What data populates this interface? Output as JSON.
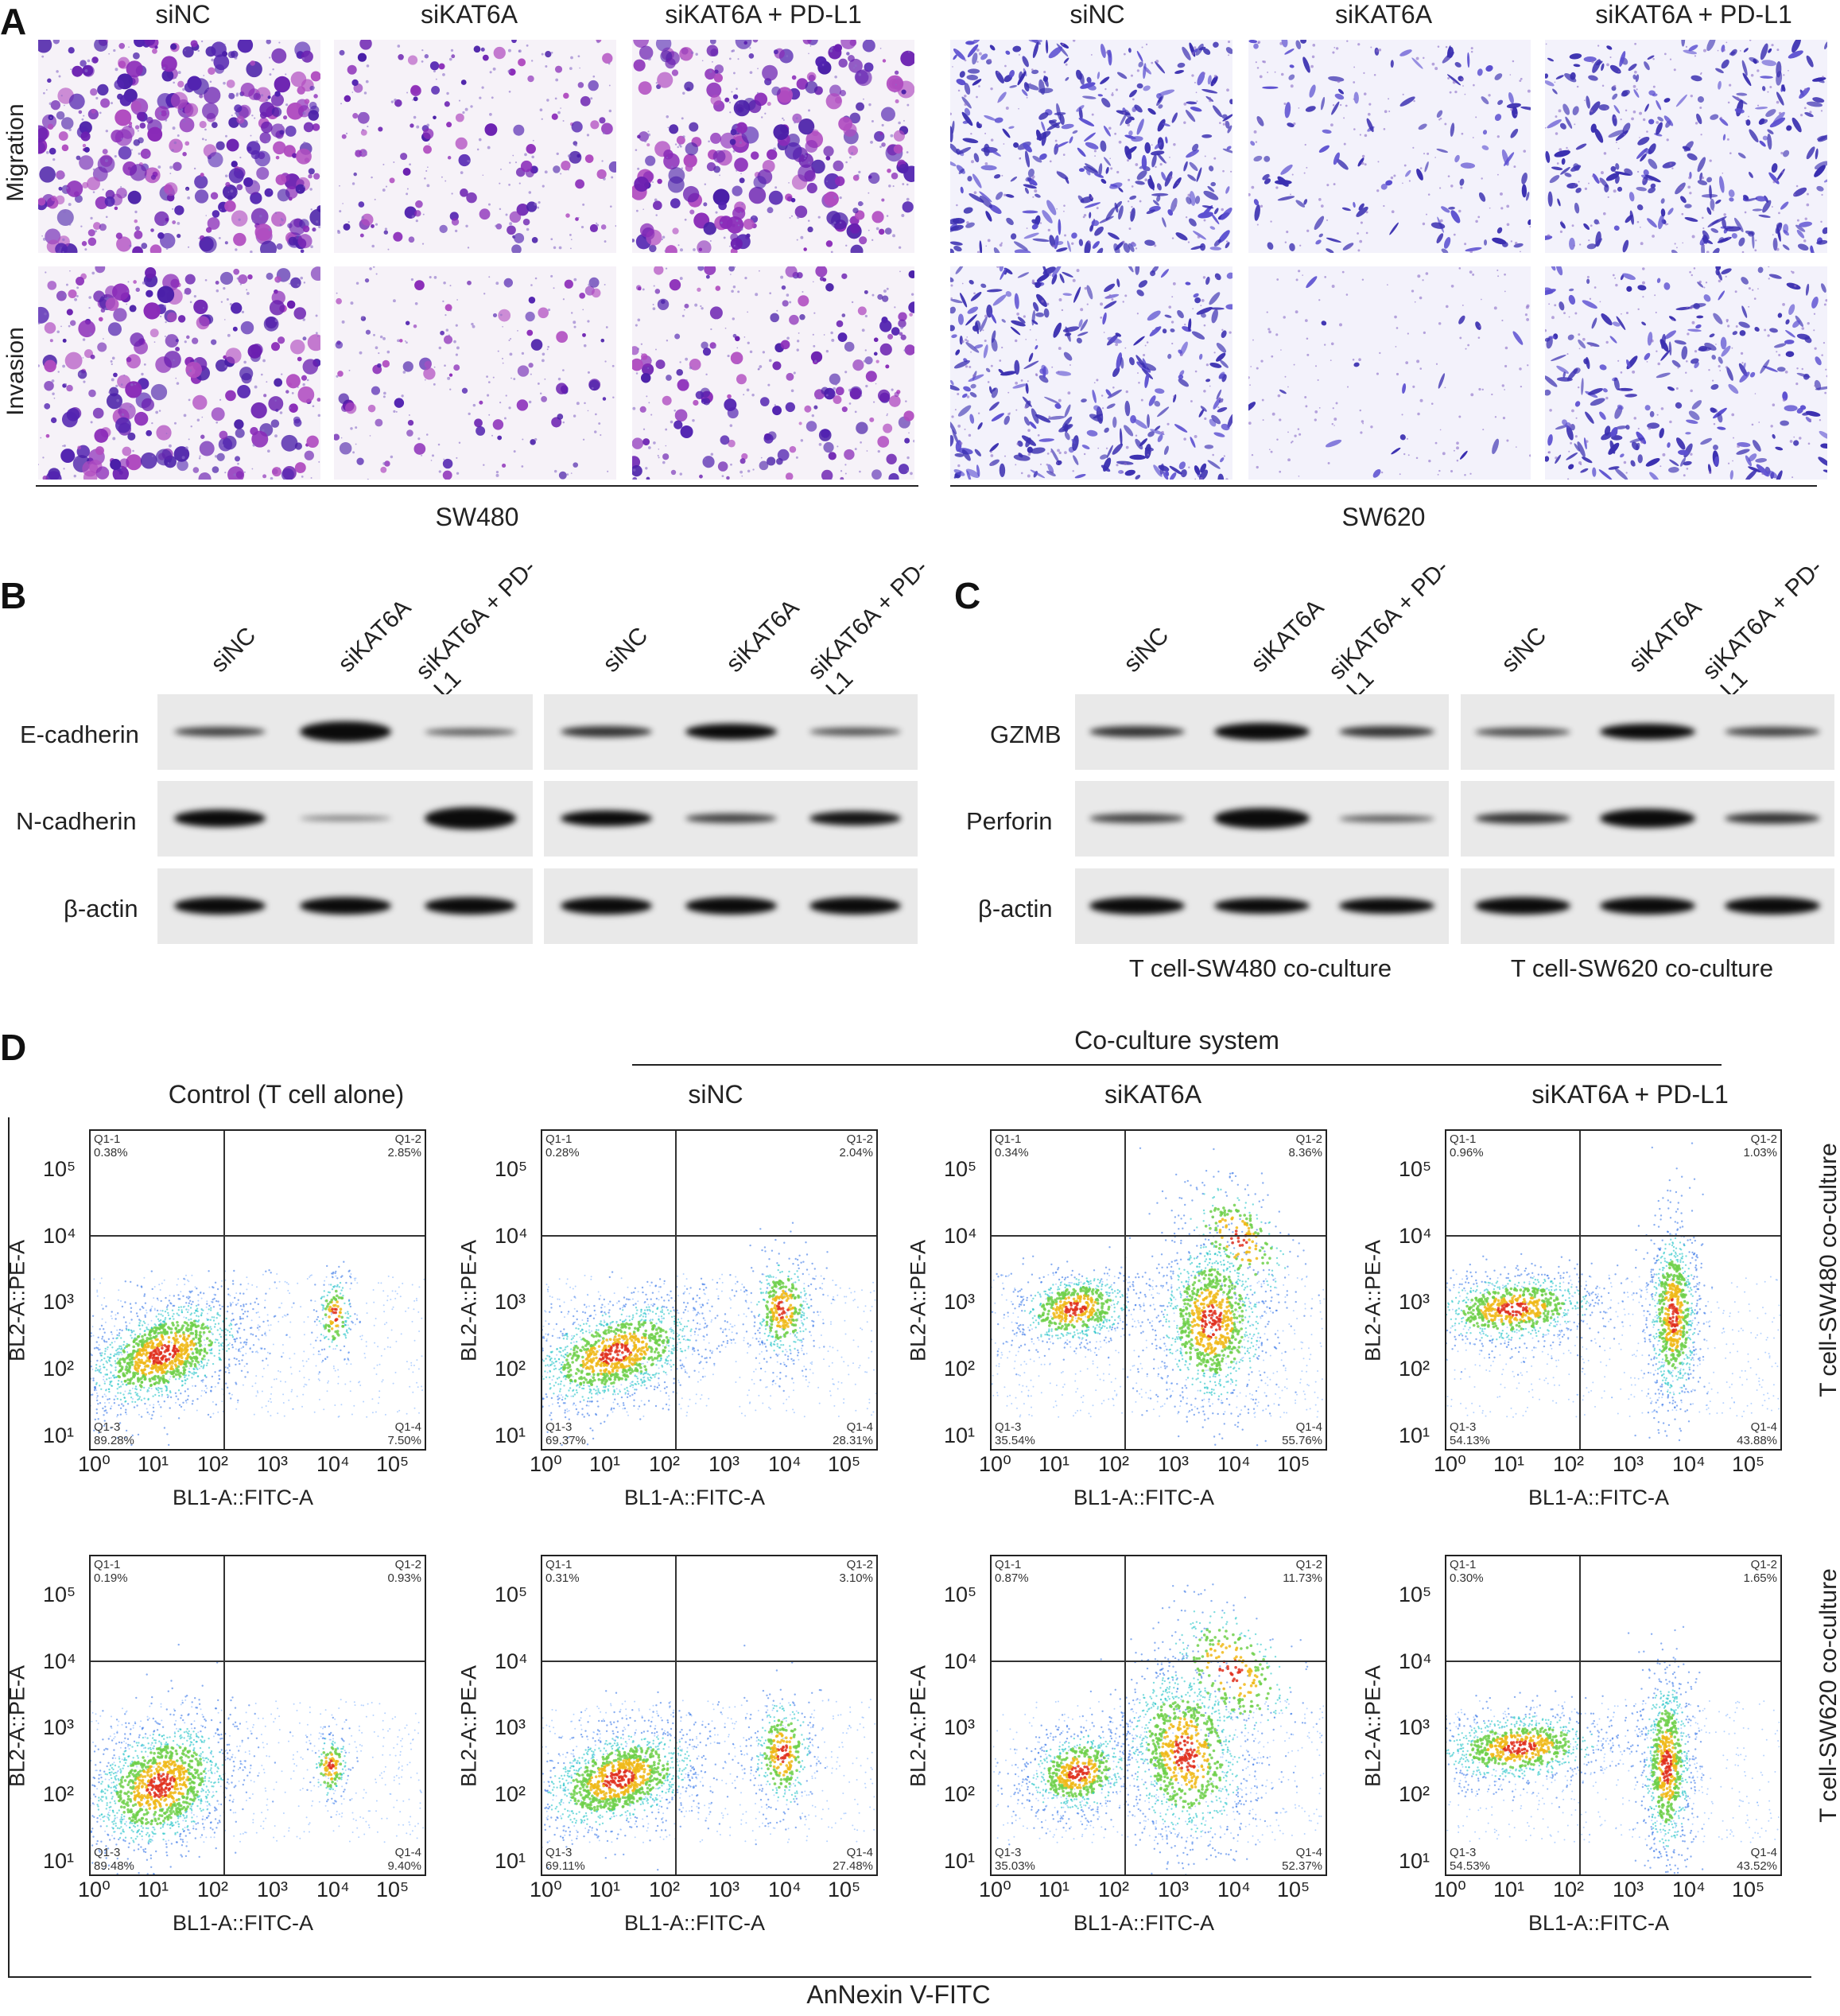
{
  "panel_a": {
    "label": "A",
    "row_labels": [
      "Migration",
      "Invasion"
    ],
    "groups": [
      {
        "cell_line": "SW480",
        "conditions": [
          "siNC",
          "siKAT6A",
          "siKAT6A + PD-L1"
        ]
      },
      {
        "cell_line": "SW620",
        "conditions": [
          "siNC",
          "siKAT6A",
          "siKAT6A + PD-L1"
        ]
      }
    ]
  },
  "panel_b": {
    "label": "B",
    "lanes": [
      "siNC",
      "siKAT6A",
      "siKAT6A + PD-L1"
    ],
    "rows": [
      "E-cadherin",
      "N-cadherin",
      "β-actin"
    ]
  },
  "panel_c": {
    "label": "C",
    "lanes": [
      "siNC",
      "siKAT6A",
      "siKAT6A + PD-L1"
    ],
    "rows": [
      "GZMB",
      "Perforin",
      "β-actin"
    ],
    "captions": [
      "T cell-SW480 co-culture",
      "T cell-SW620 co-culture"
    ]
  },
  "panel_d": {
    "label": "D",
    "header": "Co-culture system",
    "columns": [
      "Control (T cell alone)",
      "siNC",
      "siKAT6A",
      "siKAT6A + PD-L1"
    ],
    "row_labels": [
      "T cell-SW480 co-culture",
      "T cell-SW620 co-culture"
    ],
    "x_axis": "BL1-A::FITC-A",
    "y_axis": "BL2-A::PE-A",
    "bottom_label": "AnNexin V-FITC",
    "x_ticks": [
      "10⁰",
      "10¹",
      "10²",
      "10³",
      "10⁴",
      "10⁵"
    ],
    "y_ticks": [
      "10⁵",
      "10⁴",
      "10³",
      "10²",
      "10¹"
    ],
    "quadrant_names": [
      "Q1-1",
      "Q1-2",
      "Q1-3",
      "Q1-4"
    ],
    "plots": [
      [
        {
          "q1": "0.38%",
          "q2": "2.85%",
          "q3": "89.28%",
          "q4": "7.50%"
        },
        {
          "q1": "0.28%",
          "q2": "2.04%",
          "q3": "69.37%",
          "q4": "28.31%"
        },
        {
          "q1": "0.34%",
          "q2": "8.36%",
          "q3": "35.54%",
          "q4": "55.76%"
        },
        {
          "q1": "0.96%",
          "q2": "1.03%",
          "q3": "54.13%",
          "q4": "43.88%"
        }
      ],
      [
        {
          "q1": "0.19%",
          "q2": "0.93%",
          "q3": "89.48%",
          "q4": "9.40%"
        },
        {
          "q1": "0.31%",
          "q2": "3.10%",
          "q3": "69.11%",
          "q4": "27.48%"
        },
        {
          "q1": "0.87%",
          "q2": "11.73%",
          "q3": "35.03%",
          "q4": "52.37%"
        },
        {
          "q1": "0.30%",
          "q2": "1.65%",
          "q3": "54.53%",
          "q4": "43.52%"
        }
      ]
    ]
  }
}
